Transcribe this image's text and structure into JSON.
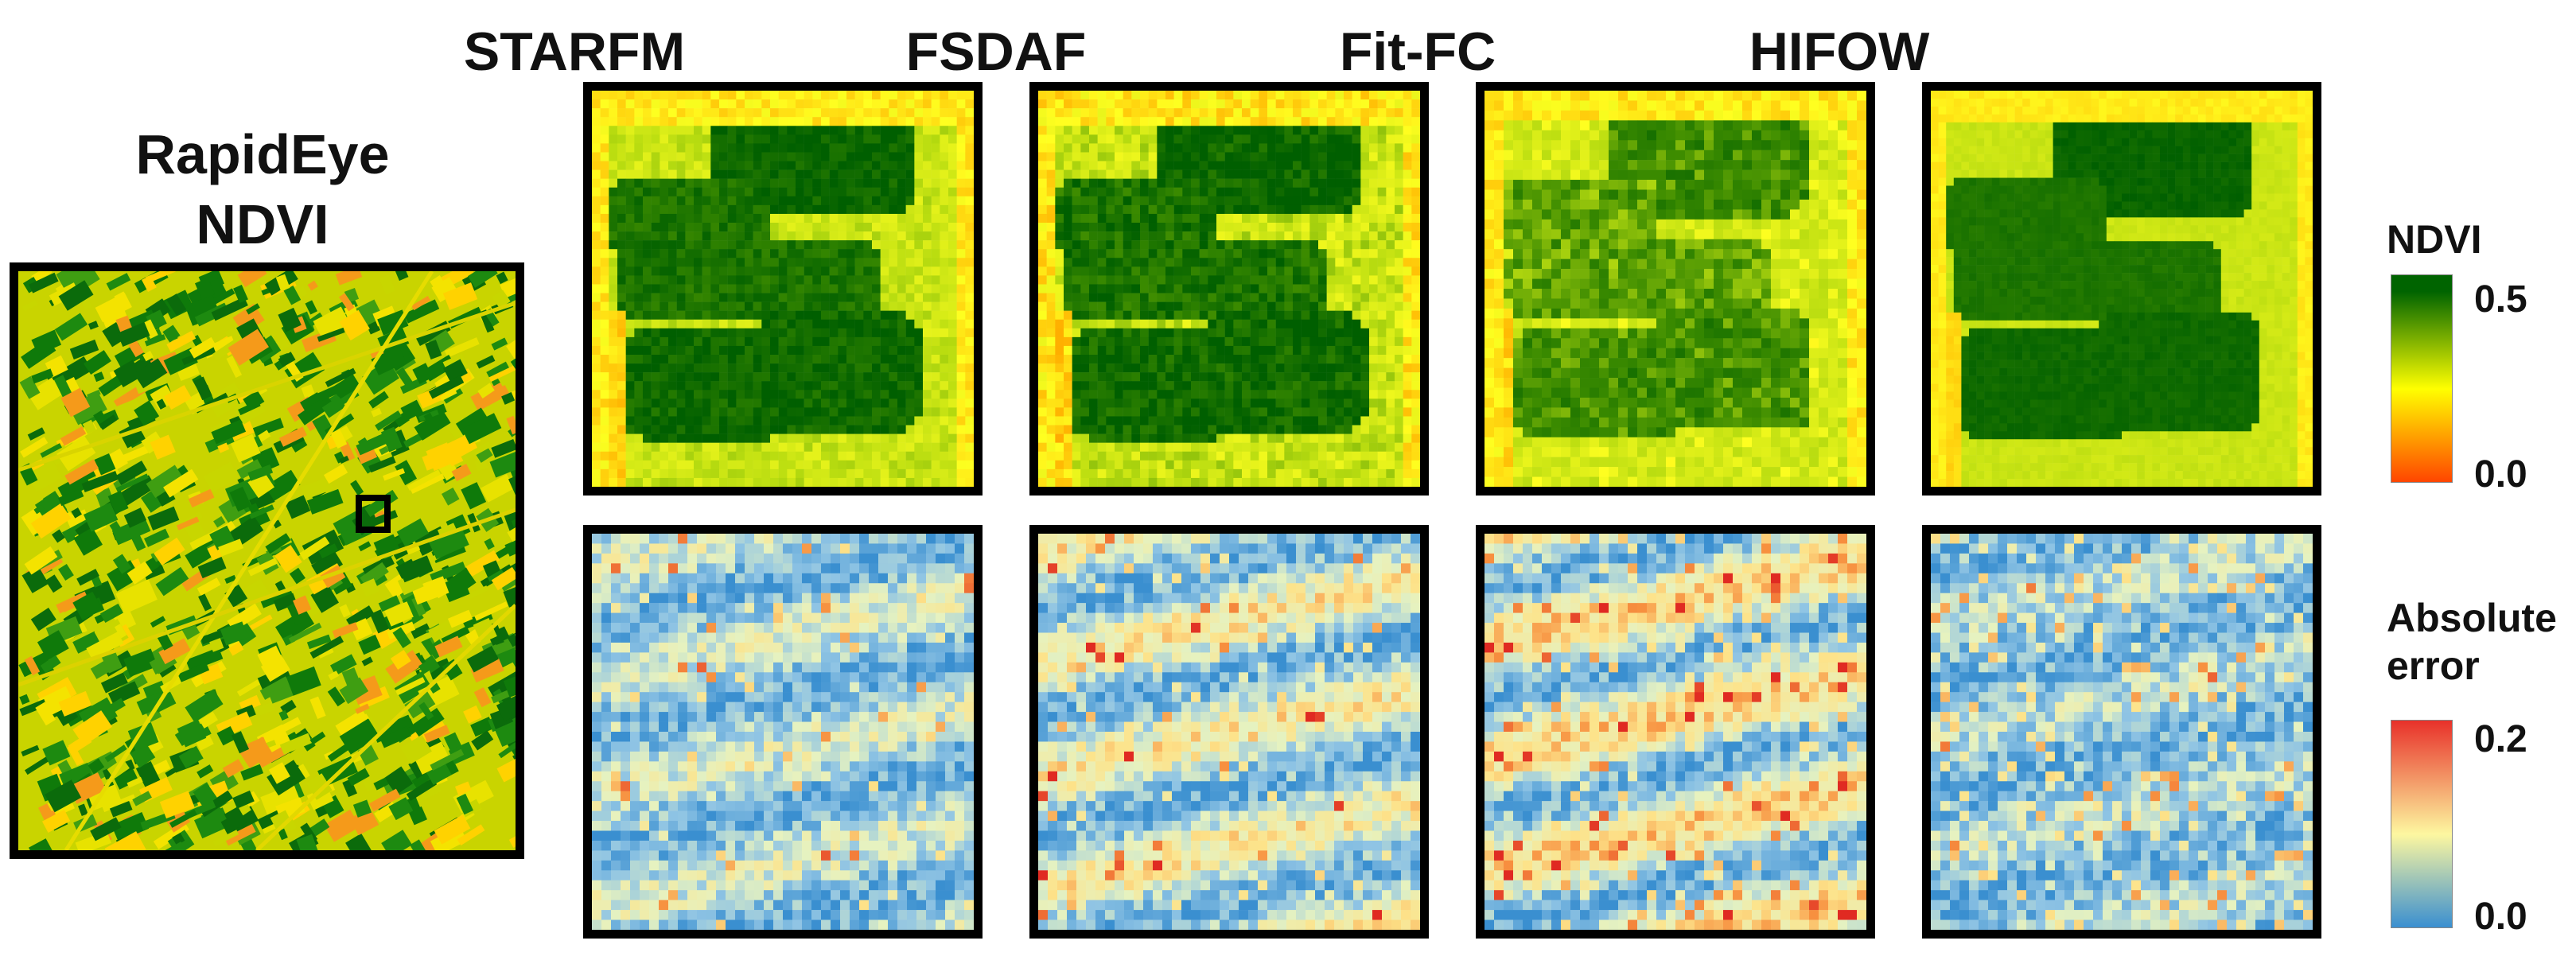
{
  "source": {
    "title_line1": "RapidEye",
    "title_line2": "NDVI"
  },
  "methods": [
    {
      "name": "STARFM"
    },
    {
      "name": "FSDAF"
    },
    {
      "name": "Fit-FC"
    },
    {
      "name": "HIFOW"
    }
  ],
  "legend_ndvi": {
    "title": "NDVI",
    "max": "0.5",
    "min": "0.0",
    "colors": [
      "#006400",
      "#ffff00",
      "#ff4500"
    ]
  },
  "legend_error": {
    "title_line1": "Absolute",
    "title_line2": "error",
    "max": "0.2",
    "min": "0.0",
    "colors": [
      "#e8312a",
      "#fdf7a0",
      "#3a8fd0"
    ]
  }
}
